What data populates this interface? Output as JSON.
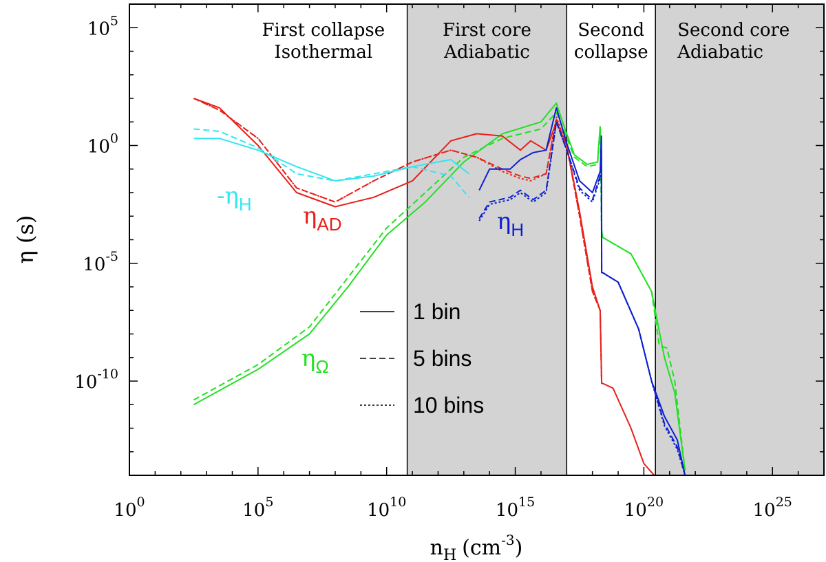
{
  "chart_data": {
    "type": "line",
    "xlabel": "n",
    "xlabel_sub": "H",
    "xlabel_units": "(cm",
    "xlabel_units_sup": "-3",
    "xlabel_units_close": ")",
    "ylabel": "η (s)",
    "x_log": true,
    "y_log": true,
    "xlim_log10": [
      0,
      27
    ],
    "ylim_log10": [
      -14,
      6
    ],
    "x_ticks": [
      {
        "exp": 0,
        "base": "10",
        "sup": "0"
      },
      {
        "exp": 5,
        "base": "10",
        "sup": "5"
      },
      {
        "exp": 10,
        "base": "10",
        "sup": "10"
      },
      {
        "exp": 15,
        "base": "10",
        "sup": "15"
      },
      {
        "exp": 20,
        "base": "10",
        "sup": "20"
      },
      {
        "exp": 25,
        "base": "10",
        "sup": "25"
      }
    ],
    "y_ticks": [
      {
        "exp": 5,
        "base": "10",
        "sup": "5"
      },
      {
        "exp": 0,
        "base": "10",
        "sup": "0"
      },
      {
        "exp": -5,
        "base": "10",
        "sup": "-5"
      },
      {
        "exp": -10,
        "base": "10",
        "sup": "-10"
      }
    ],
    "regions": [
      {
        "x_range_log10": [
          0,
          10.8
        ],
        "shaded": false,
        "line1": "First collapse",
        "line2": "Isothermal"
      },
      {
        "x_range_log10": [
          10.8,
          17.0
        ],
        "shaded": true,
        "line1": "First core",
        "line2": "Adiabatic"
      },
      {
        "x_range_log10": [
          17.0,
          20.45
        ],
        "shaded": false,
        "line1": "Second",
        "line2": "collapse"
      },
      {
        "x_range_log10": [
          20.45,
          27
        ],
        "shaded": true,
        "line1": "Second core",
        "line2": "Adiabatic"
      }
    ],
    "colors": {
      "eta_H_negative": "#33e6f0",
      "eta_AD": "#e8201a",
      "eta_H": "#0d1fd0",
      "eta_Omega": "#22e022",
      "shade": "#d3d3d3"
    },
    "annotations": [
      {
        "key": "eta_H_negative",
        "prefix": "-",
        "symbol": "η",
        "sub": "H"
      },
      {
        "key": "eta_AD",
        "prefix": "",
        "symbol": "η",
        "sub": "AD"
      },
      {
        "key": "eta_H",
        "prefix": "",
        "symbol": "η",
        "sub": "H"
      },
      {
        "key": "eta_Omega",
        "prefix": "",
        "symbol": "η",
        "sub": "Ω"
      }
    ],
    "legend": [
      {
        "label": "1 bin",
        "style": "solid"
      },
      {
        "label": "5 bins",
        "style": "dashed"
      },
      {
        "label": "10 bins",
        "style": "dotted"
      }
    ],
    "series": [
      {
        "name": "eta_Omega 1 bin",
        "color_key": "eta_Omega",
        "style": "solid",
        "x": [
          2.5,
          5,
          7,
          8.5,
          10,
          11.5,
          13,
          14.5,
          16,
          16.6,
          16.9,
          17.3,
          17.8,
          18.2,
          18.3,
          18.35,
          18.36,
          18.4,
          19.5,
          20.3,
          20.8,
          21.2,
          21.6
        ],
        "y": [
          -11.0,
          -9.5,
          -8.0,
          -6.0,
          -3.8,
          -2.4,
          -0.7,
          0.5,
          1.0,
          1.8,
          0.8,
          -0.4,
          -0.8,
          -0.7,
          0.8,
          -0.5,
          -3.6,
          -3.9,
          -4.6,
          -6.2,
          -9.0,
          -10.5,
          -13.8
        ]
      },
      {
        "name": "eta_Omega 5 bins",
        "color_key": "eta_Omega",
        "style": "dashed",
        "x": [
          2.5,
          5,
          7,
          8.5,
          10,
          11.5,
          13,
          14.5,
          16,
          16.6,
          16.9,
          17.3,
          17.8,
          18.2,
          18.3,
          18.36,
          18.4,
          19.5,
          20.3,
          20.6,
          20.9,
          21.2,
          21.6
        ],
        "y": [
          -10.8,
          -9.3,
          -7.7,
          -5.6,
          -3.5,
          -2.0,
          -0.5,
          0.3,
          0.7,
          1.4,
          0.6,
          -0.5,
          -0.9,
          -0.8,
          0.8,
          -3.6,
          -3.9,
          -4.6,
          -6.2,
          -8.5,
          -8.6,
          -10.0,
          -13.8
        ]
      },
      {
        "name": "eta_AD 1 bin",
        "color_key": "eta_AD",
        "style": "solid",
        "x": [
          2.5,
          3.5,
          5,
          6.5,
          8,
          9.5,
          11,
          12.5,
          13.5,
          14.5,
          15.2,
          15.6,
          16.2,
          16.6,
          17.0,
          17.5,
          18.0,
          18.3,
          18.36,
          18.4,
          18.8,
          19.5,
          20.0,
          20.4
        ],
        "y": [
          2.0,
          1.6,
          0.0,
          -2.0,
          -2.6,
          -2.2,
          -1.5,
          0.2,
          0.5,
          0.4,
          -0.2,
          0.2,
          -0.2,
          1.0,
          0.0,
          -2.8,
          -6.0,
          -7.0,
          -10.1,
          -10.1,
          -10.3,
          -12.0,
          -13.5,
          -14.0
        ]
      },
      {
        "name": "eta_AD 5 bins",
        "color_key": "eta_AD",
        "style": "dashed",
        "x": [
          2.5,
          3.5,
          5,
          6.5,
          8,
          9.5,
          11,
          12.5,
          13.5,
          14.5,
          15.2,
          15.6,
          16.2,
          16.6,
          17.0,
          17.5,
          18.0,
          18.3,
          18.36
        ],
        "y": [
          2.0,
          1.5,
          0.3,
          -1.8,
          -2.4,
          -1.5,
          -0.7,
          -0.2,
          -0.5,
          -1.0,
          -1.3,
          -1.4,
          -1.2,
          1.1,
          0.0,
          -3.0,
          -6.2,
          -7.0,
          -10.1
        ]
      },
      {
        "name": "eta_AD 10 bins",
        "color_key": "eta_AD",
        "style": "dotted",
        "x": [
          2.5,
          3.5,
          5,
          6.5,
          8,
          9.5,
          11,
          12.5,
          13.5,
          14.5,
          15.2,
          15.6,
          16.2,
          16.6,
          17.0,
          17.5,
          18.0,
          18.3,
          18.36
        ],
        "y": [
          2.0,
          1.5,
          0.3,
          -1.8,
          -2.4,
          -1.5,
          -0.7,
          -0.2,
          -0.5,
          -1.1,
          -1.4,
          -1.5,
          -1.2,
          1.2,
          0.0,
          -3.0,
          -6.2,
          -7.0,
          -10.1
        ]
      },
      {
        "name": "-eta_H 1 bin",
        "color_key": "eta_H_negative",
        "style": "solid",
        "x": [
          2.5,
          3.5,
          5,
          6.5,
          8,
          9.5,
          11,
          12.5,
          13.2
        ],
        "y": [
          0.3,
          0.3,
          -0.2,
          -0.9,
          -1.5,
          -1.3,
          -0.9,
          -0.6,
          -1.2
        ]
      },
      {
        "name": "-eta_H 5 bins",
        "color_key": "eta_H_negative",
        "style": "dashed",
        "x": [
          2.5,
          3.5,
          5,
          6.5,
          8,
          9.5,
          11,
          12.5,
          13.2
        ],
        "y": [
          0.7,
          0.6,
          -0.1,
          -1.2,
          -1.5,
          -1.2,
          -0.9,
          -1.3,
          -2.2
        ]
      },
      {
        "name": "eta_H 1 bin",
        "color_key": "eta_H",
        "style": "solid",
        "x": [
          13.6,
          14.0,
          14.8,
          15.2,
          15.7,
          16.2,
          16.6,
          17.0,
          17.5,
          18.0,
          18.3,
          18.35,
          18.36,
          18.4,
          19.0,
          19.8,
          20.3,
          20.8,
          21.3,
          21.6
        ],
        "y": [
          -1.9,
          -1.0,
          -1.0,
          -0.6,
          -0.3,
          -0.2,
          1.6,
          0.1,
          -1.5,
          -2.0,
          -1.1,
          0.4,
          -5.4,
          -5.4,
          -5.8,
          -7.8,
          -10.0,
          -11.5,
          -12.5,
          -14.0
        ]
      },
      {
        "name": "eta_H 5 bins",
        "color_key": "eta_H",
        "style": "dashed",
        "x": [
          13.6,
          14.0,
          14.8,
          15.2,
          15.7,
          16.2,
          16.6,
          17.0,
          17.5,
          18.0,
          18.3,
          18.35,
          18.36,
          18.4,
          19.0,
          19.8,
          20.3,
          20.8,
          21.3,
          21.6
        ],
        "y": [
          -3.1,
          -2.4,
          -2.2,
          -1.9,
          -2.3,
          -1.9,
          1.0,
          -0.2,
          -1.8,
          -2.3,
          -1.3,
          -0.2,
          -5.4,
          -5.4,
          -5.8,
          -7.8,
          -10.0,
          -11.8,
          -12.8,
          -14.0
        ]
      },
      {
        "name": "eta_H 10 bins",
        "color_key": "eta_H",
        "style": "dotted",
        "x": [
          13.6,
          14.0,
          14.8,
          15.2,
          15.7,
          16.2,
          16.6,
          17.0,
          17.5,
          18.0,
          18.3,
          18.35,
          18.36,
          18.4,
          19.0,
          19.8,
          20.3,
          20.8,
          21.3,
          21.6
        ],
        "y": [
          -3.2,
          -2.5,
          -2.3,
          -2.0,
          -2.4,
          -2.0,
          1.0,
          -0.2,
          -1.9,
          -2.4,
          -1.4,
          -0.3,
          -5.4,
          -5.4,
          -5.8,
          -7.8,
          -10.0,
          -11.9,
          -12.9,
          -14.0
        ]
      }
    ]
  }
}
